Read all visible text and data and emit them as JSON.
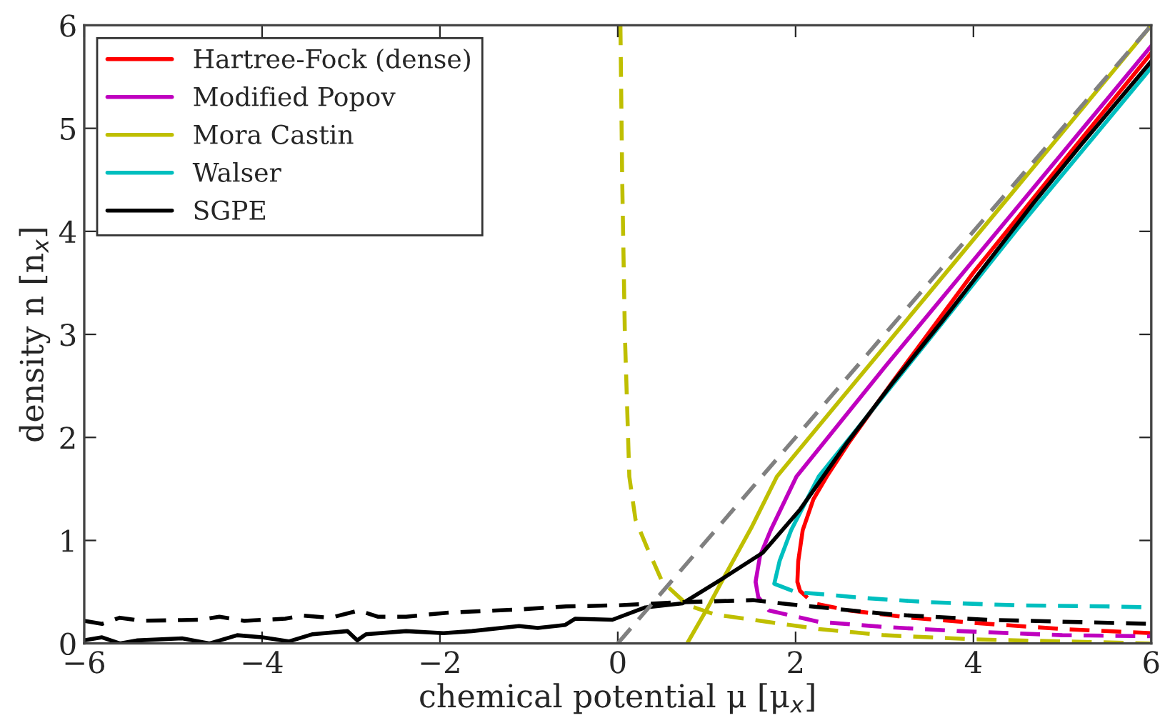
{
  "chart_data": {
    "type": "line",
    "xlabel": "chemical potential μ [μ$_{x}$]",
    "ylabel": "density n [n$_{x}$]",
    "xlim": [
      -6,
      6
    ],
    "ylim": [
      0,
      6
    ],
    "xticks": [
      {
        "value": -6,
        "label": "−6"
      },
      {
        "value": -4,
        "label": "−4"
      },
      {
        "value": -2,
        "label": "−2"
      },
      0,
      2,
      4,
      6
    ],
    "yticks": [
      0,
      1,
      2,
      3,
      4,
      5,
      6
    ],
    "grid": false,
    "legend": "top left",
    "marker": "none",
    "series": [
      {
        "name": "Hartree-Fock (dense)",
        "color": "#ff0000",
        "line_style": "solid",
        "x": [
          2.02,
          2.03,
          2.08,
          2.2,
          2.35,
          2.6,
          3.1,
          4.0,
          5.0,
          6
        ],
        "values": [
          0.6,
          0.8,
          1.1,
          1.4,
          1.62,
          1.95,
          2.55,
          3.6,
          4.67,
          5.73
        ]
      },
      {
        "name": "Modified Popov",
        "color": "#bf00bf",
        "line_style": "solid",
        "x": [
          1.55,
          1.6,
          1.72,
          2.01,
          3,
          4,
          5,
          6
        ],
        "values": [
          0.6,
          0.85,
          1.1,
          1.62,
          2.68,
          3.72,
          4.76,
          5.8
        ]
      },
      {
        "name": "Mora Castin",
        "color": "#bfbf00",
        "line_style": "solid",
        "x": [
          0.78,
          1.0,
          1.2,
          1.5,
          1.79,
          2.5,
          3.5,
          4.5,
          6
        ],
        "values": [
          0,
          0.33,
          0.65,
          1.12,
          1.62,
          2.36,
          3.4,
          4.44,
          6
        ]
      },
      {
        "name": "Walser",
        "color": "#00bfbf",
        "line_style": "solid",
        "x": [
          1.76,
          1.82,
          1.95,
          2.26,
          2.8,
          3.5,
          4.5,
          6
        ],
        "values": [
          0.58,
          0.8,
          1.1,
          1.62,
          2.2,
          2.95,
          4.03,
          5.59
        ]
      },
      {
        "name": "SGPE",
        "color": "#000000",
        "line_style": "solid",
        "x": [
          -6,
          -5.8,
          -5.6,
          -5.4,
          -4.9,
          -4.59,
          -4.28,
          -4.0,
          -3.7,
          -3.43,
          -3.04,
          -2.93,
          -2.83,
          -2.38,
          -1.96,
          -1.64,
          -1.11,
          -0.9,
          -0.59,
          -0.48,
          -0.06,
          0.31,
          0.73,
          1.16,
          1.63,
          2.05,
          2.58,
          3.1,
          3.64,
          4.16,
          4.68,
          5.22,
          6
        ],
        "values": [
          0.03,
          0.06,
          0.0,
          0.03,
          0.05,
          0.0,
          0.08,
          0.06,
          0.02,
          0.09,
          0.12,
          0.03,
          0.09,
          0.12,
          0.1,
          0.12,
          0.17,
          0.15,
          0.18,
          0.24,
          0.23,
          0.35,
          0.39,
          0.62,
          0.88,
          1.3,
          1.95,
          2.54,
          3.12,
          3.7,
          4.28,
          4.85,
          5.65
        ]
      },
      {
        "color": "#ff0000",
        "line_style": "dashed",
        "x": [
          2.02,
          2.05,
          2.2,
          2.6,
          3.3,
          4.0,
          5.0,
          6
        ],
        "values": [
          0.6,
          0.51,
          0.39,
          0.32,
          0.25,
          0.2,
          0.14,
          0.1
        ]
      },
      {
        "color": "#bf00bf",
        "line_style": "dashed",
        "x": [
          1.55,
          1.58,
          1.7,
          2.26,
          3.0,
          3.84,
          5.0,
          6
        ],
        "values": [
          0.6,
          0.45,
          0.32,
          0.21,
          0.16,
          0.12,
          0.08,
          0.07
        ]
      },
      {
        "color": "#bfbf00",
        "line_style": "dashed",
        "x": [
          0.03,
          0.05,
          0.08,
          0.13,
          0.2,
          0.33,
          0.5,
          0.79,
          1.1,
          1.52,
          2.26,
          3.0,
          4.0,
          5.0,
          6
        ],
        "values": [
          6,
          4.5,
          3.0,
          1.62,
          1.2,
          0.93,
          0.6,
          0.37,
          0.28,
          0.23,
          0.14,
          0.08,
          0.04,
          0.02,
          0.0
        ]
      },
      {
        "color": "#00bfbf",
        "line_style": "dashed",
        "x": [
          1.76,
          2.0,
          2.79,
          3.5,
          4.5,
          5.5,
          6
        ],
        "values": [
          0.58,
          0.5,
          0.44,
          0.4,
          0.37,
          0.36,
          0.35
        ]
      },
      {
        "color": "#000000",
        "line_style": "dashed",
        "x": [
          -6,
          -5.8,
          -5.6,
          -5.36,
          -4.69,
          -4.48,
          -4.2,
          -3.74,
          -3.54,
          -3.23,
          -2.91,
          -2.7,
          -2.38,
          -1.9,
          -1.64,
          -1.11,
          -0.58,
          -0.01,
          0.7,
          1.52,
          2.05,
          3.1,
          4.16,
          6
        ],
        "values": [
          0.22,
          0.19,
          0.25,
          0.22,
          0.23,
          0.26,
          0.22,
          0.24,
          0.27,
          0.25,
          0.32,
          0.26,
          0.26,
          0.3,
          0.31,
          0.33,
          0.36,
          0.37,
          0.4,
          0.42,
          0.37,
          0.28,
          0.23,
          0.19
        ]
      },
      {
        "color": "#808080",
        "line_style": "dashed",
        "x": [
          0,
          6
        ],
        "values": [
          0,
          6
        ]
      }
    ]
  }
}
